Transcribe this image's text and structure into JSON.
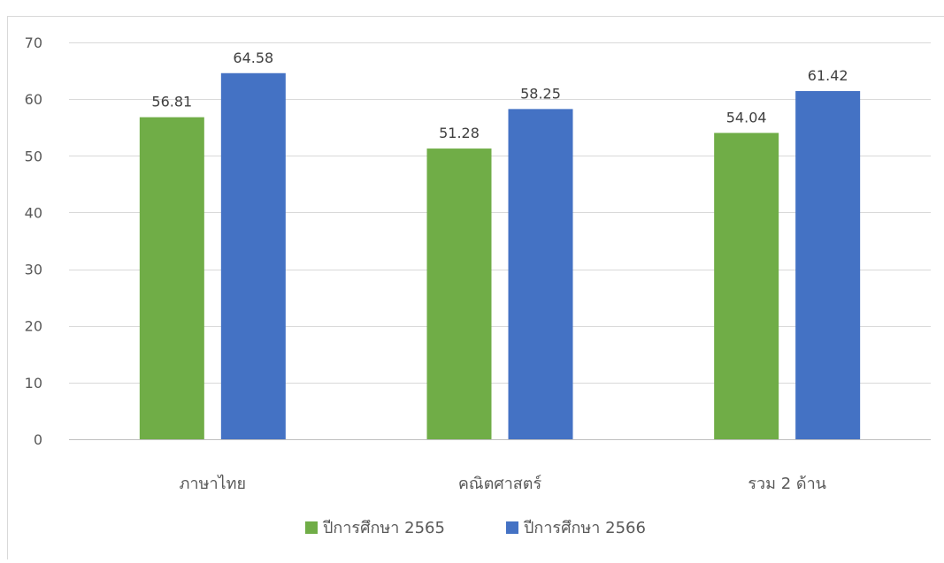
{
  "chart_data": {
    "type": "bar",
    "categories": [
      "ภาษาไทย",
      "คณิตศาสตร์",
      "รวม 2 ด้าน"
    ],
    "series": [
      {
        "name": "ปีการศึกษา 2565",
        "color": "#70ad47",
        "values": [
          56.81,
          51.28,
          54.04
        ]
      },
      {
        "name": "ปีการศึกษา 2566",
        "color": "#4472c4",
        "values": [
          64.58,
          58.25,
          61.42
        ]
      }
    ],
    "title": "",
    "xlabel": "",
    "ylabel": "",
    "ylim": [
      0,
      70
    ],
    "yticks": [
      0,
      10,
      20,
      30,
      40,
      50,
      60,
      70
    ],
    "grid": true,
    "data_labels": true,
    "legend_position": "bottom"
  }
}
